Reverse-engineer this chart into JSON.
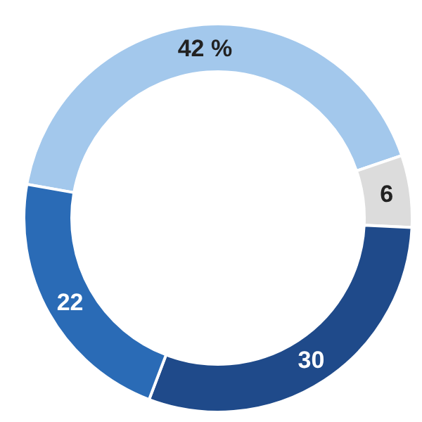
{
  "chart_data": {
    "type": "donut",
    "categories": [
      null,
      null,
      null,
      null
    ],
    "values": [
      42,
      6,
      30,
      22
    ],
    "colors": [
      "#a3c8ec",
      "#dcdcdc",
      "#1f4a8a",
      "#2a6bb6"
    ],
    "value_labels": [
      "42 %",
      "6",
      "30",
      "22"
    ],
    "legend": false
  }
}
